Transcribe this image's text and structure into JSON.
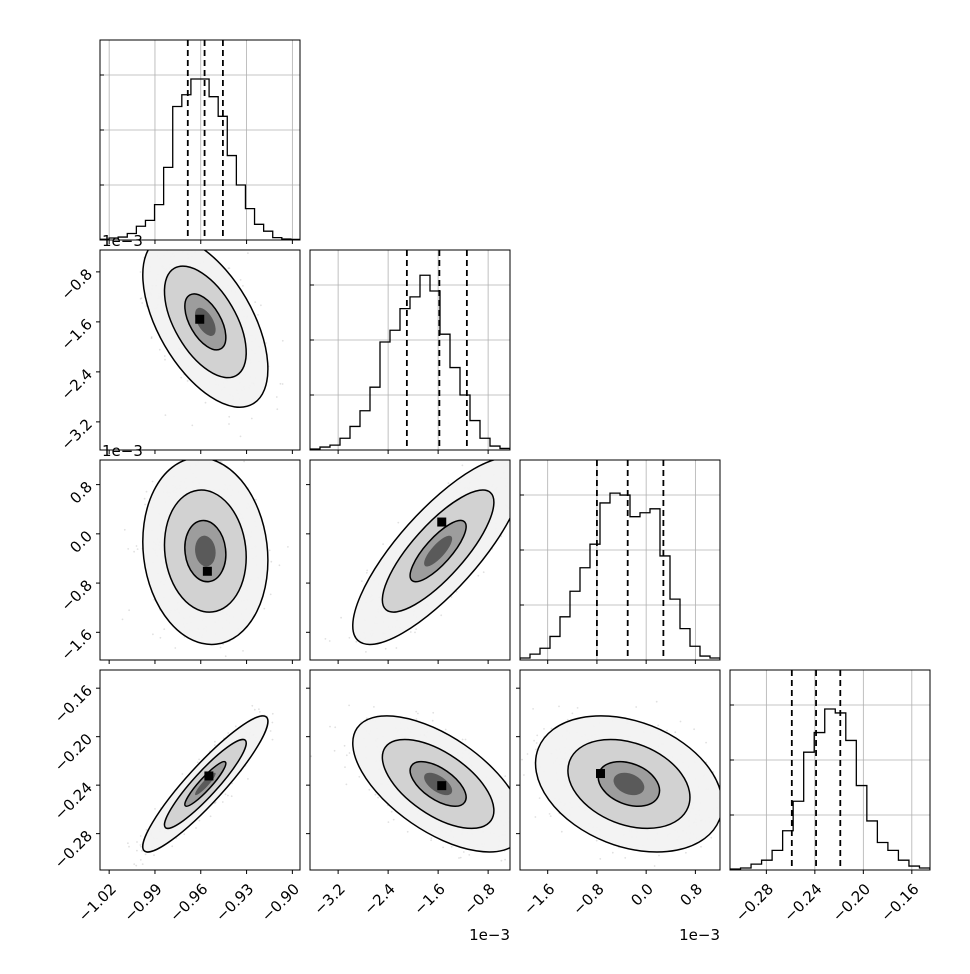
{
  "chart_data": {
    "type": "corner",
    "parameters": [
      {
        "xlim": [
          -1.026,
          -0.895
        ],
        "ticks": [
          -1.02,
          -0.99,
          -0.96,
          -0.93,
          -0.9
        ],
        "tick_labels": [
          "−1.02",
          "−0.99",
          "−0.96",
          "−0.93",
          "−0.90"
        ],
        "offset_label": "",
        "quantiles": [
          -0.9685,
          -0.9575,
          -0.9455
        ],
        "hist": [
          0.004,
          0.01,
          0.015,
          0.033,
          0.07,
          0.1,
          0.18,
          0.37,
          0.68,
          0.74,
          0.82,
          0.82,
          0.73,
          0.63,
          0.43,
          0.28,
          0.16,
          0.08,
          0.045,
          0.012,
          0.005,
          0.003
        ]
      },
      {
        "xlim": [
          -3.65,
          -0.45
        ],
        "ticks": [
          -3.2,
          -2.4,
          -1.6,
          -0.8
        ],
        "tick_labels": [
          "−3.2",
          "−2.4",
          "−1.6",
          "−0.8"
        ],
        "offset_label": "1e−3",
        "quantiles": [
          -2.1,
          -1.58,
          -1.14
        ],
        "hist": [
          0.005,
          0.015,
          0.025,
          0.06,
          0.12,
          0.2,
          0.32,
          0.55,
          0.61,
          0.72,
          0.78,
          0.89,
          0.81,
          0.59,
          0.42,
          0.28,
          0.15,
          0.06,
          0.02,
          0.008
        ]
      },
      {
        "xlim": [
          -2.05,
          1.2
        ],
        "ticks": [
          -1.6,
          -0.8,
          0.0,
          0.8
        ],
        "tick_labels": [
          "−1.6",
          "−0.8",
          "0.0",
          "0.8"
        ],
        "offset_label": "1e−3",
        "quantiles": [
          -0.8,
          -0.3,
          0.28
        ],
        "hist": [
          0.01,
          0.03,
          0.06,
          0.12,
          0.22,
          0.35,
          0.47,
          0.59,
          0.8,
          0.85,
          0.84,
          0.73,
          0.75,
          0.77,
          0.53,
          0.31,
          0.16,
          0.07,
          0.02,
          0.01
        ]
      },
      {
        "xlim": [
          -0.31,
          -0.145
        ],
        "ticks": [
          -0.28,
          -0.24,
          -0.2,
          -0.16
        ],
        "tick_labels": [
          "−0.28",
          "−0.24",
          "−0.20",
          "−0.16"
        ],
        "offset_label": "",
        "quantiles": [
          -0.259,
          -0.239,
          -0.219
        ],
        "hist": [
          0.005,
          0.01,
          0.03,
          0.05,
          0.1,
          0.2,
          0.35,
          0.6,
          0.7,
          0.82,
          0.8,
          0.66,
          0.43,
          0.25,
          0.14,
          0.1,
          0.05,
          0.02,
          0.01
        ]
      }
    ],
    "pairs": [
      {
        "row": 1,
        "col": 0,
        "mean": [
          -0.957,
          -1.6
        ],
        "sd": [
          0.0135,
          0.45
        ],
        "rho": -0.55,
        "y_ticks": [
          -0.8,
          -1.6,
          -2.4,
          -3.2
        ],
        "y_tick_labels": [
          "−0.8",
          "−1.6",
          "−2.4",
          "−3.2"
        ],
        "ylim": [
          -3.65,
          -0.45
        ],
        "y_offset_label": "1e−3",
        "peak": [
          -0.961,
          -1.55
        ]
      },
      {
        "row": 2,
        "col": 0,
        "mean": [
          -0.957,
          -0.28
        ],
        "sd": [
          0.0135,
          0.5
        ],
        "rho": -0.1,
        "y_ticks": [
          0.8,
          0.0,
          -0.8,
          -1.6
        ],
        "y_tick_labels": [
          "0.8",
          "0.0",
          "−0.8",
          "−1.6"
        ],
        "ylim": [
          -2.05,
          1.2
        ],
        "y_offset_label": "1e−3",
        "peak": [
          -0.956,
          -0.6
        ]
      },
      {
        "row": 2,
        "col": 1,
        "mean": [
          -1.6,
          -0.28
        ],
        "sd": [
          0.45,
          0.5
        ],
        "rho": 0.8,
        "peak": [
          -1.55,
          0.2
        ]
      },
      {
        "row": 3,
        "col": 0,
        "mean": [
          -0.957,
          -0.239
        ],
        "sd": [
          0.0135,
          0.0185
        ],
        "rho": 0.92,
        "y_ticks": [
          -0.16,
          -0.2,
          -0.24,
          -0.28
        ],
        "y_tick_labels": [
          "−0.16",
          "−0.20",
          "−0.24",
          "−0.28"
        ],
        "ylim": [
          -0.31,
          -0.145
        ],
        "y_offset_label": "",
        "peak": [
          -0.955,
          -0.232
        ]
      },
      {
        "row": 3,
        "col": 1,
        "mean": [
          -1.6,
          -0.239
        ],
        "sd": [
          0.45,
          0.0185
        ],
        "rho": -0.6,
        "peak": [
          -1.55,
          -0.24
        ]
      },
      {
        "row": 3,
        "col": 2,
        "mean": [
          -0.28,
          -0.239
        ],
        "sd": [
          0.5,
          0.0185
        ],
        "rho": -0.3,
        "peak": [
          -0.75,
          -0.23
        ]
      }
    ],
    "contour_levels": [
      0.39,
      0.86,
      0.99
    ],
    "colors": {
      "hist": "#000000",
      "quantile": "#000000",
      "scatter": "#000000",
      "grid": "#b0b0b0",
      "fill": "#444444"
    }
  }
}
